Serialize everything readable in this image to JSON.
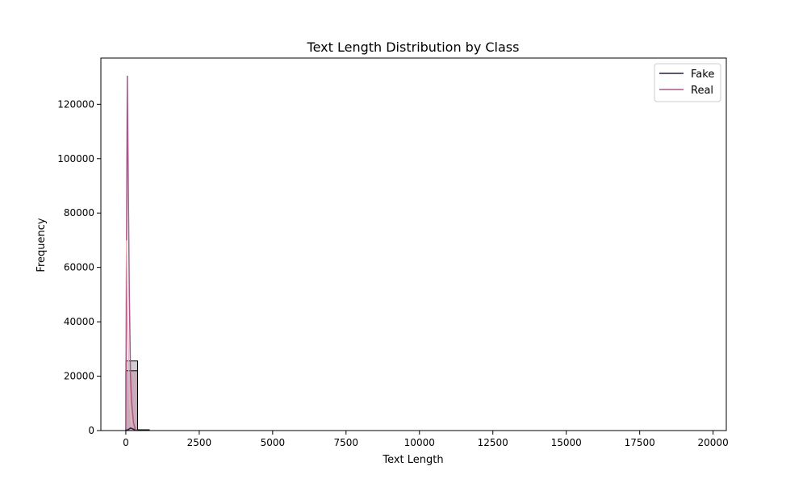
{
  "chart_data": {
    "type": "histogram",
    "title": "Text Length Distribution by Class",
    "xlabel": "Text Length",
    "ylabel": "Frequency",
    "xlim": [
      -850,
      20450
    ],
    "ylim": [
      0,
      137000
    ],
    "x_ticks": [
      0,
      2500,
      5000,
      7500,
      10000,
      12500,
      15000,
      17500,
      20000
    ],
    "y_ticks": [
      0,
      20000,
      40000,
      60000,
      80000,
      100000,
      120000
    ],
    "bin_width": 400,
    "grid": false,
    "legend": {
      "placement": "top-right"
    },
    "series": [
      {
        "name": "Fake",
        "color": "#2b1f3b",
        "bars": [
          {
            "x0": 0,
            "x1": 400,
            "value": 25600
          },
          {
            "x0": 400,
            "x1": 800,
            "value": 300
          }
        ],
        "kde": [
          [
            0,
            0
          ],
          [
            50,
            200
          ],
          [
            100,
            500
          ],
          [
            150,
            900
          ],
          [
            200,
            800
          ],
          [
            300,
            300
          ],
          [
            400,
            0
          ]
        ]
      },
      {
        "name": "Real",
        "color": "#a8598a",
        "bars": [
          {
            "x0": 0,
            "x1": 400,
            "value": 22000
          },
          {
            "x0": 400,
            "x1": 800,
            "value": 200
          }
        ],
        "kde": [
          [
            0,
            500
          ],
          [
            20,
            60000
          ],
          [
            50,
            130500
          ],
          [
            80,
            95000
          ],
          [
            120,
            50000
          ],
          [
            160,
            20000
          ],
          [
            200,
            10000
          ],
          [
            260,
            3000
          ],
          [
            320,
            500
          ],
          [
            400,
            0
          ]
        ]
      }
    ]
  }
}
